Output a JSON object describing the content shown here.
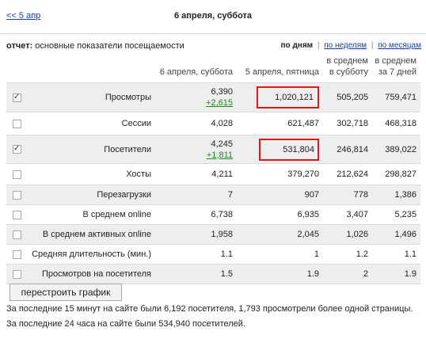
{
  "header": {
    "prev_link": "<< 5 апр",
    "title": "6 апреля, суббота"
  },
  "report": {
    "label": "отчет:",
    "value": " основные показатели посещаемости"
  },
  "period": {
    "by_days": "по дням",
    "by_weeks": "по неделям",
    "by_months": "по месяцам",
    "separator": "|"
  },
  "columns": [
    "6 апреля, суббота",
    "5 апреля, пятница",
    "в среднем в субботу",
    "в среднем за 7 дней"
  ],
  "rows": [
    {
      "label": "Просмотры",
      "checked": true,
      "today": "6,390",
      "delta": "+2,615",
      "yesterday": "1,020,121",
      "avg_saturday": "505,205",
      "avg_7days": "759,471"
    },
    {
      "label": "Сессии",
      "checked": false,
      "today": "4,028",
      "yesterday": "621,487",
      "avg_saturday": "302,718",
      "avg_7days": "468,318"
    },
    {
      "label": "Посетители",
      "checked": true,
      "today": "4,245",
      "delta": "+1,811",
      "yesterday": "531,804",
      "avg_saturday": "246,814",
      "avg_7days": "389,022"
    },
    {
      "label": "Хосты",
      "checked": false,
      "today": "4,211",
      "yesterday": "379,270",
      "avg_saturday": "212,624",
      "avg_7days": "298,827"
    },
    {
      "label": "Перезагрузки",
      "checked": false,
      "today": "7",
      "yesterday": "907",
      "avg_saturday": "778",
      "avg_7days": "1,386"
    },
    {
      "label": "В среднем online",
      "checked": false,
      "today": "6,738",
      "yesterday": "6,935",
      "avg_saturday": "3,407",
      "avg_7days": "5,235"
    },
    {
      "label": "В среднем активных online",
      "checked": false,
      "today": "1,958",
      "yesterday": "2,045",
      "avg_saturday": "1,026",
      "avg_7days": "1,496"
    },
    {
      "label": "Средняя длительность (мин.)",
      "checked": false,
      "today": "1.1",
      "yesterday": "1",
      "avg_saturday": "1.2",
      "avg_7days": "1.1"
    },
    {
      "label": "Просмотров на посетителя",
      "checked": false,
      "today": "1.5",
      "yesterday": "1.9",
      "avg_saturday": "2",
      "avg_7days": "1.9"
    }
  ],
  "rebuild_button": "перестроить график",
  "footer": {
    "line1": "За последние 15 минут на сайте были 6,192 посетителя, 1,793 просмотрели более одной страницы.",
    "line2": "За последние 24 часа на сайте были 534,940 посетителей."
  },
  "colors": {
    "highlight": "#e2151b",
    "delta": "#1d8a1d",
    "link": "#1a3fa8"
  }
}
